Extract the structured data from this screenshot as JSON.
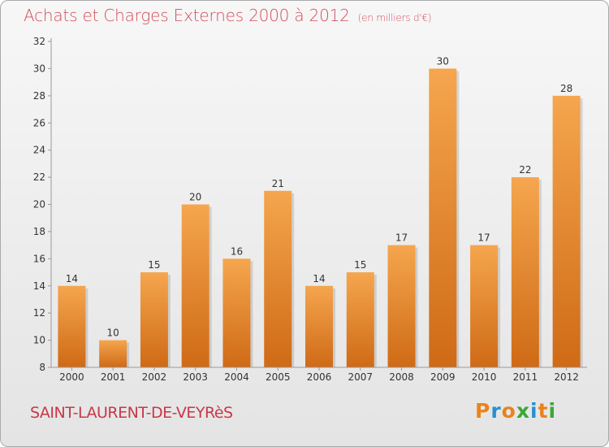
{
  "header": {
    "title": "Achats et Charges Externes 2000 à 2012",
    "subtitle": "(en milliers d'€)"
  },
  "footer": {
    "commune": "SAINT-LAURENT-DE-VEYRèS",
    "logo_text": "Proxiti"
  },
  "colors": {
    "title": "#d24f5a",
    "bar_light": "#f5a64e",
    "bar_dark": "#cf6a16",
    "logo_letters": [
      "#e8841c",
      "#2a8fcf",
      "#e8841c",
      "#3aa835",
      "#2a8fcf",
      "#e8841c",
      "#3aa835"
    ]
  },
  "chart_data": {
    "type": "bar",
    "categories": [
      "2000",
      "2001",
      "2002",
      "2003",
      "2004",
      "2005",
      "2006",
      "2007",
      "2008",
      "2009",
      "2010",
      "2011",
      "2012"
    ],
    "values": [
      14,
      10,
      15,
      20,
      16,
      21,
      14,
      15,
      17,
      30,
      17,
      22,
      28
    ],
    "title": "Achats et Charges Externes 2000 à 2012",
    "subtitle": "(en milliers d'€)",
    "ylim": [
      8,
      32
    ],
    "yticks": [
      8,
      10,
      12,
      14,
      16,
      18,
      20,
      22,
      24,
      26,
      28,
      30,
      32
    ],
    "grid": false,
    "data_labels": true
  }
}
